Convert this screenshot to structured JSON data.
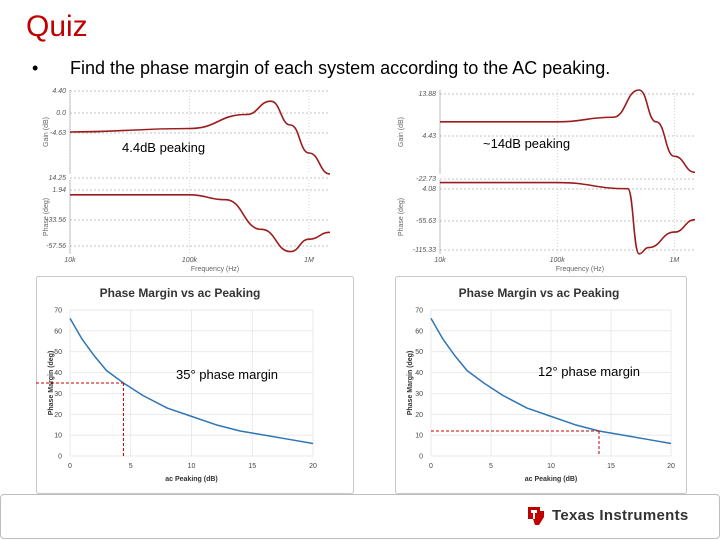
{
  "page": {
    "title": "Quiz",
    "bullet": "•",
    "text": "Find the phase margin of each system according to the AC peaking.",
    "logo_text": "Texas Instruments",
    "brand_color": "#c00000"
  },
  "chart_data": [
    {
      "type": "line",
      "panel": "gain-left",
      "ylabel": "Gain (dB)",
      "y_ticks": [
        "4.40",
        "0.0",
        "-4.63"
      ],
      "ylim": [
        -6,
        6
      ],
      "x_scale": "log",
      "xlim": [
        10000,
        1500000
      ],
      "annotation": "4.4dB peaking",
      "series": [
        {
          "x": [
            10000,
            100000,
            300000,
            480000,
            700000,
            1000000,
            1500000
          ],
          "values": [
            0,
            0.5,
            2.5,
            4.4,
            1,
            -3,
            -6
          ]
        }
      ],
      "color": "#9b1c1c"
    },
    {
      "type": "line",
      "panel": "phase-left",
      "ylabel": "Phase (deg)",
      "y_ticks": [
        "14.25",
        "1.94",
        "-33.56",
        "-57.56"
      ],
      "ylim": [
        -60,
        15
      ],
      "x_scale": "log",
      "xlim": [
        10000,
        1500000
      ],
      "x_ticks": [
        "10k",
        "100k",
        "1M"
      ],
      "xlabel": "Frequency (Hz)",
      "series": [
        {
          "x": [
            10000,
            100000,
            200000,
            400000,
            700000,
            1000000,
            1500000
          ],
          "values": [
            0,
            0,
            -5,
            -35,
            -57.56,
            -45,
            -38
          ]
        }
      ],
      "color": "#9b1c1c"
    },
    {
      "type": "line",
      "panel": "gain-right",
      "ylabel": "Gain (dB)",
      "y_ticks": [
        "13.88",
        "4.43",
        "-22.73"
      ],
      "ylim": [
        -22.73,
        13.88
      ],
      "x_scale": "log",
      "xlim": [
        10000,
        1500000
      ],
      "annotation": "~14dB peaking",
      "series": [
        {
          "x": [
            10000,
            100000,
            300000,
            500000,
            700000,
            1000000,
            1500000
          ],
          "values": [
            0,
            0,
            2,
            13.88,
            0,
            -15,
            -22
          ]
        }
      ],
      "color": "#9b1c1c"
    },
    {
      "type": "line",
      "panel": "phase-right",
      "ylabel": "Phase (deg)",
      "y_ticks": [
        "4.08",
        "-55.63",
        "-115.33"
      ],
      "ylim": [
        -115.33,
        4.08
      ],
      "x_scale": "log",
      "xlim": [
        10000,
        1500000
      ],
      "x_ticks": [
        "10k",
        "100k",
        "1M"
      ],
      "xlabel": "Frequency (Hz)",
      "series": [
        {
          "x": [
            10000,
            100000,
            400000,
            500000,
            600000,
            1000000,
            1500000
          ],
          "values": [
            0,
            0,
            -10,
            -115,
            -105,
            -80,
            -60
          ]
        }
      ],
      "color": "#9b1c1c"
    },
    {
      "type": "line",
      "panel": "pm-left",
      "title": "Phase Margin vs ac Peaking",
      "xlabel": "ac Peaking (dB)",
      "ylabel": "Phase Margin (deg)",
      "xlim": [
        0,
        20
      ],
      "ylim": [
        0,
        70
      ],
      "x_ticks": [
        0,
        5,
        10,
        15,
        20
      ],
      "y_ticks": [
        0,
        10,
        20,
        30,
        40,
        50,
        60,
        70
      ],
      "series": [
        {
          "x": [
            0,
            1,
            2,
            3,
            4.4,
            6,
            8,
            10,
            12,
            14,
            16,
            18,
            20
          ],
          "values": [
            66,
            56,
            48,
            41,
            35,
            29,
            23,
            19,
            15,
            12,
            10,
            8,
            6
          ]
        }
      ],
      "marker": {
        "x": 4.4,
        "y": 35
      },
      "annotation": "35° phase margin",
      "color": "#2e75b6"
    },
    {
      "type": "line",
      "panel": "pm-right",
      "title": "Phase Margin vs ac Peaking",
      "xlabel": "ac Peaking (dB)",
      "ylabel": "Phase Margin (deg)",
      "xlim": [
        0,
        20
      ],
      "ylim": [
        0,
        70
      ],
      "x_ticks": [
        0,
        5,
        10,
        15,
        20
      ],
      "y_ticks": [
        0,
        10,
        20,
        30,
        40,
        50,
        60,
        70
      ],
      "series": [
        {
          "x": [
            0,
            1,
            2,
            3,
            4.4,
            6,
            8,
            10,
            12,
            14,
            16,
            18,
            20
          ],
          "values": [
            66,
            56,
            48,
            41,
            35,
            29,
            23,
            19,
            15,
            12,
            10,
            8,
            6
          ]
        }
      ],
      "marker": {
        "x": 14,
        "y": 12
      },
      "annotation": "12° phase margin",
      "color": "#2e75b6"
    }
  ]
}
